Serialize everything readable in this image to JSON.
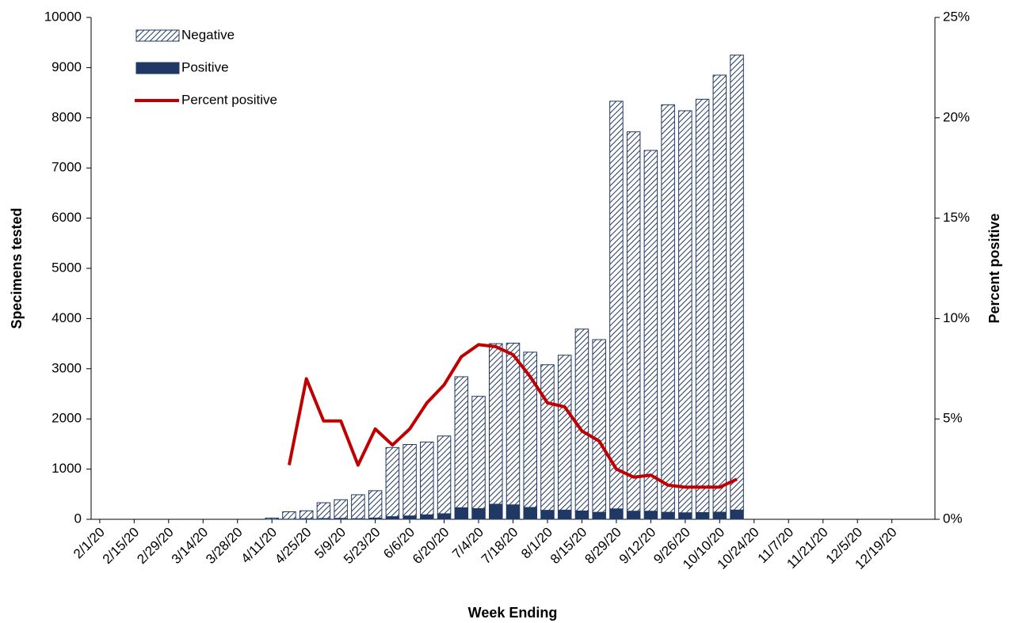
{
  "chart_data": {
    "type": "bar",
    "stacked": true,
    "xlabel": "Week Ending",
    "ylabel": "Specimens tested",
    "y2label": "Percent positive",
    "categories": [
      "2/1/20",
      null,
      "2/15/20",
      null,
      "2/29/20",
      null,
      "3/14/20",
      null,
      "3/28/20",
      null,
      "4/11/20",
      null,
      "4/25/20",
      null,
      "5/9/20",
      null,
      "5/23/20",
      null,
      "6/6/20",
      null,
      "6/20/20",
      null,
      "7/4/20",
      null,
      "7/18/20",
      null,
      "8/1/20",
      null,
      "8/15/20",
      null,
      "8/29/20",
      null,
      "9/12/20",
      null,
      "9/26/20",
      null,
      "10/10/20",
      null,
      "10/24/20",
      null,
      "11/7/20",
      null,
      "11/21/20",
      null,
      "12/5/20",
      null,
      "12/19/20",
      null,
      null
    ],
    "series": [
      {
        "name": "Negative",
        "color": "#203864",
        "pattern": "hatch",
        "values": [
          null,
          null,
          null,
          null,
          null,
          null,
          null,
          null,
          null,
          null,
          22,
          146,
          158,
          314,
          371,
          477,
          544,
          1377,
          1423,
          1451,
          1549,
          2610,
          2237,
          3199,
          3222,
          3094,
          2901,
          3087,
          3623,
          3440,
          8122,
          7558,
          7188,
          8120,
          8010,
          8236,
          8708,
          9065,
          null,
          null,
          null,
          null,
          null,
          null,
          null,
          null,
          null,
          null,
          null
        ]
      },
      {
        "name": "Positive",
        "color": "#203864",
        "values": [
          null,
          null,
          null,
          null,
          null,
          null,
          null,
          null,
          null,
          null,
          3,
          4,
          12,
          16,
          19,
          13,
          26,
          53,
          67,
          89,
          111,
          230,
          213,
          301,
          288,
          236,
          179,
          183,
          167,
          140,
          208,
          162,
          162,
          140,
          130,
          134,
          142,
          185,
          null,
          null,
          null,
          null,
          null,
          null,
          null,
          null,
          null,
          null,
          null
        ]
      },
      {
        "name": "Percent positive",
        "color": "#c00000",
        "type": "line",
        "axis": "y2",
        "values": [
          null,
          null,
          null,
          null,
          null,
          null,
          null,
          null,
          null,
          null,
          null,
          2.7,
          7.0,
          4.9,
          4.9,
          2.7,
          4.5,
          3.7,
          4.5,
          5.8,
          6.7,
          8.1,
          8.7,
          8.6,
          8.2,
          7.1,
          5.8,
          5.6,
          4.4,
          3.9,
          2.5,
          2.1,
          2.2,
          1.7,
          1.6,
          1.6,
          1.6,
          2.0,
          null,
          null,
          null,
          null,
          null,
          null,
          null,
          null,
          null,
          null,
          null
        ]
      }
    ],
    "ylim": [
      0,
      10000
    ],
    "yticks": [
      0,
      1000,
      2000,
      3000,
      4000,
      5000,
      6000,
      7000,
      8000,
      9000,
      10000
    ],
    "y2lim": [
      0,
      25
    ],
    "y2ticks": [
      {
        "value": 0,
        "label": "0%"
      },
      {
        "value": 5,
        "label": "5%"
      },
      {
        "value": 10,
        "label": "10%"
      },
      {
        "value": 15,
        "label": "15%"
      },
      {
        "value": 20,
        "label": "20%"
      },
      {
        "value": 25,
        "label": "25%"
      }
    ],
    "grid": false,
    "legend": "upper left"
  }
}
